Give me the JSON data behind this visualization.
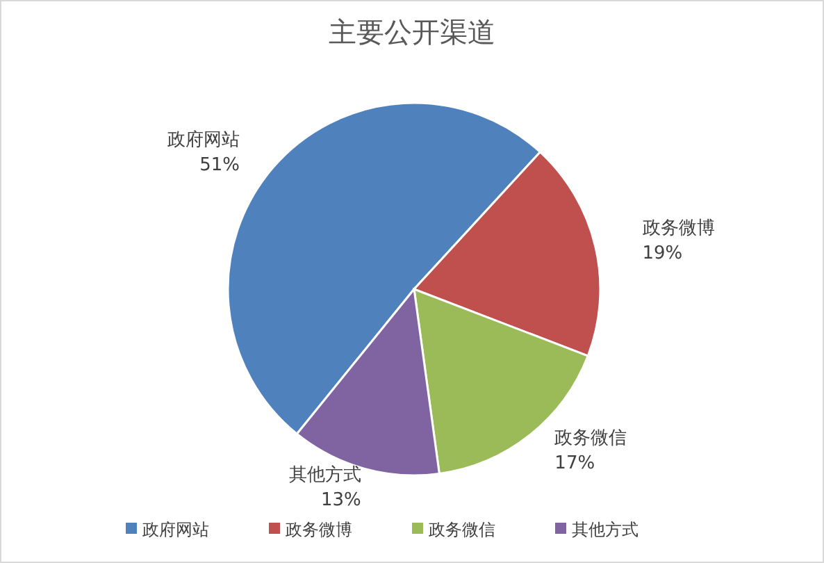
{
  "chart_data": {
    "type": "pie",
    "title": "主要公开渠道",
    "categories": [
      "政府网站",
      "政务微博",
      "政务微信",
      "其他方式"
    ],
    "values": [
      51,
      19,
      17,
      13
    ],
    "colors": [
      "#4f81bd",
      "#c0504d",
      "#9bbb59",
      "#8064a2"
    ],
    "value_labels": [
      "51%",
      "19%",
      "17%",
      "13%"
    ],
    "legend": "bottom"
  }
}
